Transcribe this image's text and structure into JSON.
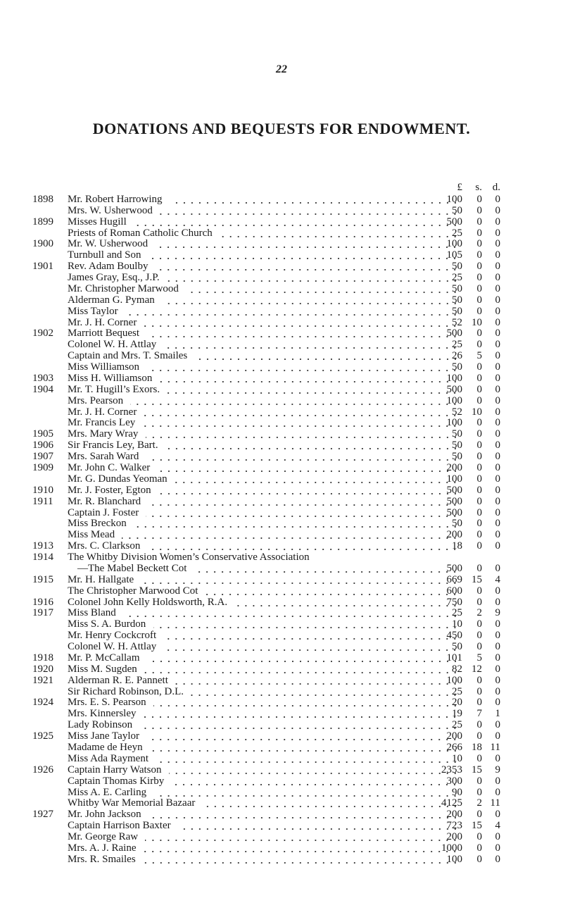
{
  "page_number": "22",
  "title": "DONATIONS AND BEQUESTS FOR ENDOWMENT.",
  "columns": [
    "£",
    "s.",
    "d."
  ],
  "rows": [
    {
      "year": "1898",
      "name": "Mr. Robert Harrowing",
      "amount": [
        "100",
        "0",
        "0"
      ]
    },
    {
      "year": null,
      "name": "Mrs. W. Usherwood",
      "amount": [
        "50",
        "0",
        "0"
      ]
    },
    {
      "year": "1899",
      "name": "Misses Hugill",
      "amount": [
        "500",
        "0",
        "0"
      ]
    },
    {
      "year": null,
      "name": "Priests of Roman Catholic Church",
      "amount": [
        "25",
        "0",
        "0"
      ]
    },
    {
      "year": "1900",
      "name": "Mr. W. Usherwood",
      "amount": [
        "100",
        "0",
        "0"
      ]
    },
    {
      "year": null,
      "name": "Turnbull and Son",
      "amount": [
        "105",
        "0",
        "0"
      ]
    },
    {
      "year": "1901",
      "name": "Rev. Adam Boulby",
      "amount": [
        "50",
        "0",
        "0"
      ]
    },
    {
      "year": null,
      "name": "James Gray, Esq., J.P.",
      "amount": [
        "25",
        "0",
        "0"
      ]
    },
    {
      "year": null,
      "name": "Mr. Christopher Marwood",
      "amount": [
        "50",
        "0",
        "0"
      ]
    },
    {
      "year": null,
      "name": "Alderman G. Pyman",
      "amount": [
        "50",
        "0",
        "0"
      ]
    },
    {
      "year": null,
      "name": "Miss Taylor",
      "amount": [
        "50",
        "0",
        "0"
      ]
    },
    {
      "year": null,
      "name": "Mr. J. H. Corner",
      "amount": [
        "52",
        "10",
        "0"
      ]
    },
    {
      "year": "1902",
      "name": "Marriott Bequest",
      "amount": [
        "500",
        "0",
        "0"
      ]
    },
    {
      "year": null,
      "name": "Colonel W. H. Attlay",
      "amount": [
        "25",
        "0",
        "0"
      ]
    },
    {
      "year": null,
      "name": "Captain and Mrs. T. Smailes",
      "amount": [
        "26",
        "5",
        "0"
      ]
    },
    {
      "year": null,
      "name": "Miss Williamson",
      "amount": [
        "50",
        "0",
        "0"
      ]
    },
    {
      "year": "1903",
      "name": "Miss H. Williamson",
      "amount": [
        "100",
        "0",
        "0"
      ]
    },
    {
      "year": "1904",
      "name": "Mr. T. Hugill’s Exors.",
      "amount": [
        "500",
        "0",
        "0"
      ]
    },
    {
      "year": null,
      "name": "Mrs. Pearson",
      "amount": [
        "100",
        "0",
        "0"
      ]
    },
    {
      "year": null,
      "name": "Mr. J. H. Corner",
      "amount": [
        "52",
        "10",
        "0"
      ]
    },
    {
      "year": null,
      "name": "Mr. Francis Ley",
      "amount": [
        "100",
        "0",
        "0"
      ]
    },
    {
      "year": "1905",
      "name": "Mrs. Mary Wray",
      "amount": [
        "50",
        "0",
        "0"
      ]
    },
    {
      "year": "1906",
      "name": "Sir Francis Ley, Bart.",
      "amount": [
        "50",
        "0",
        "0"
      ]
    },
    {
      "year": "1907",
      "name": "Mrs. Sarah Ward",
      "amount": [
        "50",
        "0",
        "0"
      ]
    },
    {
      "year": "1909",
      "name": "Mr. John C. Walker",
      "amount": [
        "200",
        "0",
        "0"
      ]
    },
    {
      "year": null,
      "name": "Mr. G. Dundas Yeoman",
      "amount": [
        "100",
        "0",
        "0"
      ]
    },
    {
      "year": "1910",
      "name": "Mr. J. Foster, Egton",
      "amount": [
        "500",
        "0",
        "0"
      ]
    },
    {
      "year": "1911",
      "name": "Mr. R. Blanchard",
      "amount": [
        "500",
        "0",
        "0"
      ]
    },
    {
      "year": null,
      "name": "Captain J. Foster",
      "amount": [
        "500",
        "0",
        "0"
      ]
    },
    {
      "year": null,
      "name": "Miss Breckon",
      "amount": [
        "50",
        "0",
        "0"
      ]
    },
    {
      "year": null,
      "name": "Miss Mead",
      "amount": [
        "200",
        "0",
        "0"
      ]
    },
    {
      "year": "1913",
      "name": "Mrs. C. Clarkson",
      "amount": [
        "18",
        "0",
        "0"
      ]
    },
    {
      "year": "1914",
      "name": "The Whitby Division Women’s Conservative Association",
      "continuation": "—The Mabel Beckett Cot",
      "amount": [
        "500",
        "0",
        "0"
      ]
    },
    {
      "year": "1915",
      "name": "Mr. H. Hallgate",
      "amount": [
        "669",
        "15",
        "4"
      ]
    },
    {
      "year": null,
      "name": "The Christopher Marwood Cot",
      "amount": [
        "600",
        "0",
        "0"
      ]
    },
    {
      "year": "1916",
      "name": "Colonel John Kelly Holdsworth, R.A.",
      "amount": [
        "750",
        "0",
        "0"
      ]
    },
    {
      "year": "1917",
      "name": "Miss Bland",
      "amount": [
        "25",
        "2",
        "9"
      ]
    },
    {
      "year": null,
      "name": "Miss S. A. Burdon",
      "amount": [
        "10",
        "0",
        "0"
      ]
    },
    {
      "year": null,
      "name": "Mr. Henry Cockcroft",
      "amount": [
        "450",
        "0",
        "0"
      ]
    },
    {
      "year": null,
      "name": "Colonel W. H. Attlay",
      "amount": [
        "50",
        "0",
        "0"
      ]
    },
    {
      "year": "1918",
      "name": "Mr. P. McCallam",
      "amount": [
        "101",
        "5",
        "0"
      ]
    },
    {
      "year": "1920",
      "name": "Miss M. Sugden",
      "amount": [
        "82",
        "12",
        "0"
      ]
    },
    {
      "year": "1921",
      "name": "Alderman R. E. Pannett",
      "amount": [
        "100",
        "0",
        "0"
      ]
    },
    {
      "year": null,
      "name": "Sir Richard Robinson, D.L.",
      "amount": [
        "25",
        "0",
        "0"
      ]
    },
    {
      "year": "1924",
      "name": "Mrs. E. S. Pearson",
      "amount": [
        "20",
        "0",
        "0"
      ]
    },
    {
      "year": null,
      "name": "Mrs. Kinnersley",
      "amount": [
        "19",
        "7",
        "1"
      ]
    },
    {
      "year": null,
      "name": "Lady Robinson",
      "amount": [
        "25",
        "0",
        "0"
      ]
    },
    {
      "year": "1925",
      "name": "Miss Jane Taylor",
      "amount": [
        "200",
        "0",
        "0"
      ]
    },
    {
      "year": null,
      "name": "Madame de Heyn",
      "amount": [
        "266",
        "18",
        "11"
      ]
    },
    {
      "year": null,
      "name": "Miss Ada Rayment",
      "amount": [
        "10",
        "0",
        "0"
      ]
    },
    {
      "year": "1926",
      "name": "Captain Harry Watson",
      "amount": [
        "2353",
        "15",
        "9"
      ]
    },
    {
      "year": null,
      "name": "Captain Thomas Kirby",
      "amount": [
        "300",
        "0",
        "0"
      ]
    },
    {
      "year": null,
      "name": "Miss A. E. Carling",
      "amount": [
        "90",
        "0",
        "0"
      ]
    },
    {
      "year": null,
      "name": "Whitby War Memorial Bazaar",
      "amount": [
        "4125",
        "2",
        "11"
      ]
    },
    {
      "year": "1927",
      "name": "Mr. John Jackson",
      "amount": [
        "200",
        "0",
        "0"
      ]
    },
    {
      "year": null,
      "name": "Captain Harrison Baxter",
      "amount": [
        "723",
        "15",
        "4"
      ]
    },
    {
      "year": null,
      "name": "Mr. George Raw",
      "amount": [
        "200",
        "0",
        "0"
      ]
    },
    {
      "year": null,
      "name": "Mrs. A. J. Raine",
      "amount": [
        "1000",
        "0",
        "0"
      ]
    },
    {
      "year": null,
      "name": "Mrs. R. Smailes",
      "amount": [
        "100",
        "0",
        "0"
      ]
    }
  ]
}
